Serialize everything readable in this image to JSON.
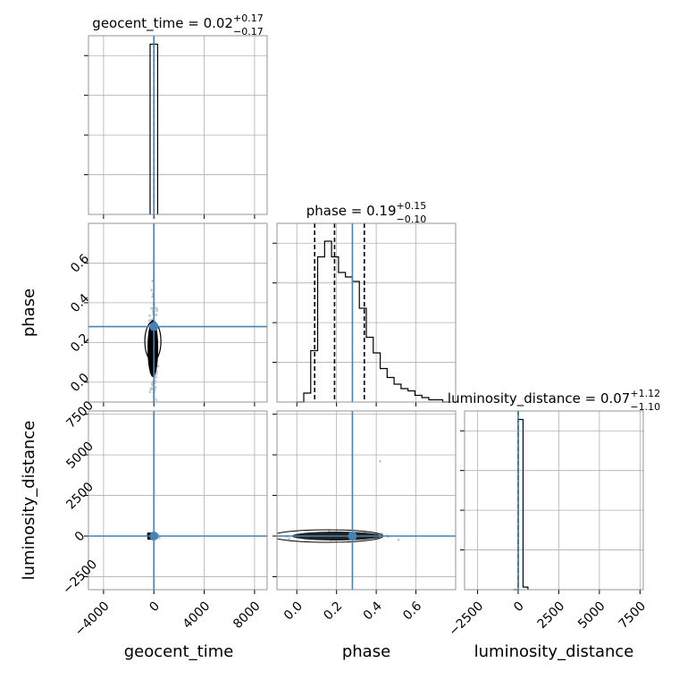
{
  "chart_data": {
    "type": "corner",
    "parameters": [
      "geocent_time",
      "phase",
      "luminosity_distance"
    ],
    "truths": {
      "geocent_time": 0,
      "phase": 0.28,
      "luminosity_distance": 0
    },
    "truth_color": "#4682b4",
    "colors": {
      "hist": "#000000",
      "truth": "#4682b4",
      "scatter": "#c8c8c8",
      "grid": "#b0b0b0"
    },
    "ranges": {
      "geocent_time": [
        -5200,
        9000
      ],
      "phase": [
        -0.1,
        0.8
      ],
      "luminosity_distance": [
        -3300,
        7700
      ]
    },
    "ticks": {
      "geocent_time": [
        -4000,
        0,
        4000,
        8000
      ],
      "phase": [
        0.0,
        0.2,
        0.4,
        0.6
      ],
      "luminosity_distance": [
        -2500,
        0,
        2500,
        5000,
        7500
      ]
    },
    "tick_labels": {
      "geocent_time": [
        "−4000",
        "0",
        "4000",
        "8000"
      ],
      "phase": [
        "0.0",
        "0.2",
        "0.4",
        "0.6"
      ],
      "luminosity_distance": [
        "−2500",
        "0",
        "2500",
        "5000",
        "7500"
      ]
    },
    "titles": {
      "geocent_time": {
        "prefix": "geocent_time = 0.02",
        "plus": "+0.17",
        "minus": "−0.17"
      },
      "phase": {
        "prefix": "phase = 0.19",
        "plus": "+0.15",
        "minus": "−0.10"
      },
      "luminosity_distance": {
        "prefix": "luminosity_distance = 0.07",
        "plus": "+1.12",
        "minus": "−1.10"
      }
    },
    "quantiles": {
      "geocent_time": [
        0.02
      ],
      "phase": [
        0.09,
        0.19,
        0.34
      ],
      "luminosity_distance": [
        0.07
      ]
    },
    "histograms": {
      "geocent_time": {
        "edges": [
          -300,
          300
        ],
        "counts": [
          1.0
        ]
      },
      "phase": {
        "edges": [
          0.0,
          0.035,
          0.07,
          0.105,
          0.14,
          0.175,
          0.21,
          0.245,
          0.28,
          0.315,
          0.35,
          0.385,
          0.42,
          0.455,
          0.49,
          0.525,
          0.56,
          0.595,
          0.63,
          0.665,
          0.7,
          0.735,
          0.77
        ],
        "counts": [
          0.0,
          0.04,
          0.23,
          0.65,
          0.72,
          0.65,
          0.58,
          0.56,
          0.54,
          0.42,
          0.29,
          0.22,
          0.15,
          0.11,
          0.08,
          0.06,
          0.05,
          0.03,
          0.02,
          0.01,
          0.01,
          0.0
        ],
        "ymax": 0.8
      },
      "luminosity_distance": {
        "edges": [
          -300,
          0,
          300,
          600
        ],
        "counts": [
          0.0,
          1.0,
          0.015
        ]
      }
    }
  },
  "labels": {
    "x": [
      "geocent_time",
      "phase",
      "luminosity_distance"
    ],
    "y": [
      "phase",
      "luminosity_distance"
    ]
  }
}
